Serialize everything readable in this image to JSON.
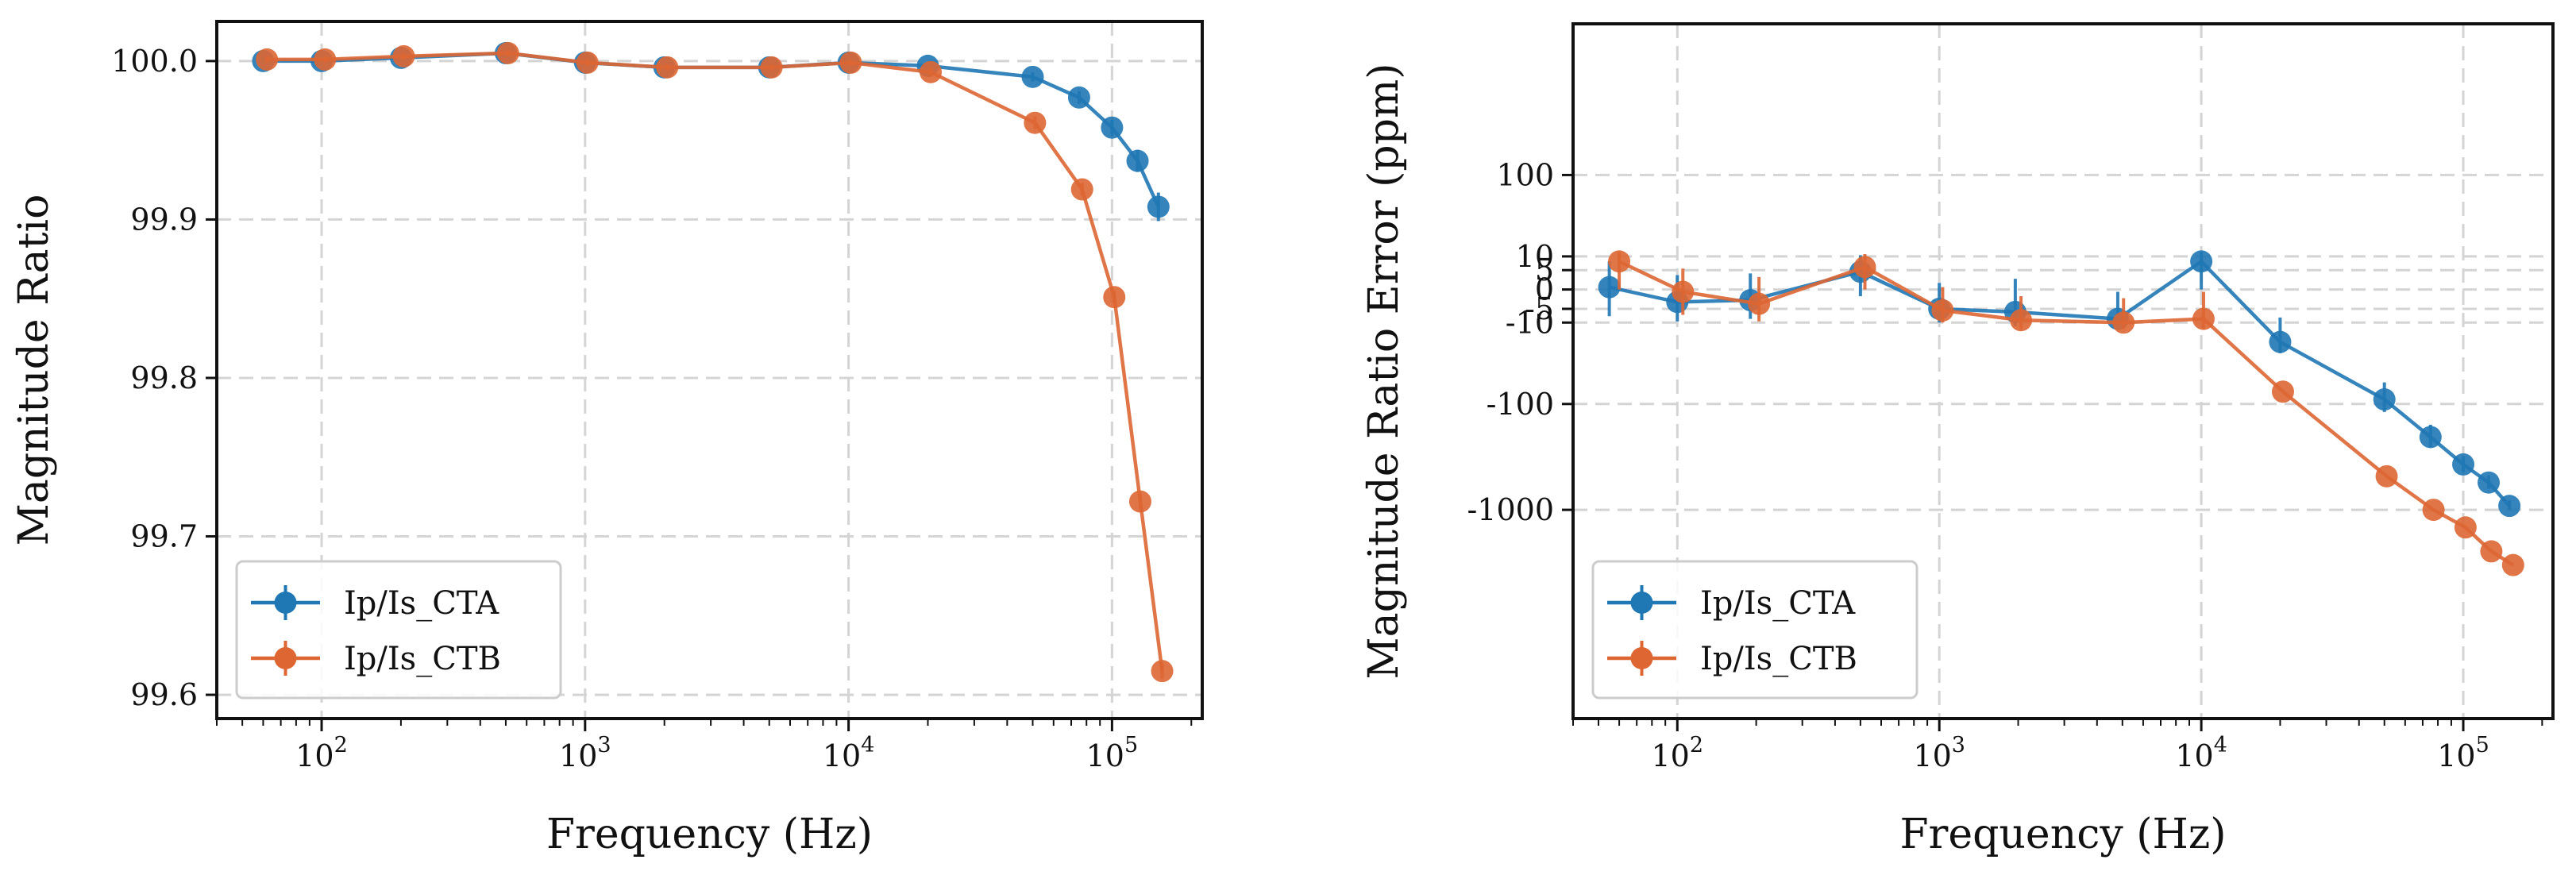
{
  "chart_data": [
    {
      "type": "line",
      "xlabel": "Frequency (Hz)",
      "ylabel": "Magnitude Ratio",
      "xscale": "log",
      "xlim": [
        40,
        220000
      ],
      "ylim": [
        99.585,
        100.025
      ],
      "yticks": [
        "99.6",
        "99.7",
        "99.8",
        "99.9",
        "100.0"
      ],
      "ytick_values": [
        99.6,
        99.7,
        99.8,
        99.9,
        100.0
      ],
      "xticks": [
        {
          "base": "10",
          "exp": "2",
          "value": 100
        },
        {
          "base": "10",
          "exp": "3",
          "value": 1000
        },
        {
          "base": "10",
          "exp": "4",
          "value": 10000
        },
        {
          "base": "10",
          "exp": "5",
          "value": 100000
        }
      ],
      "grid": true,
      "legend": "lower-left",
      "series": [
        {
          "name": "Ip/Is_CTA",
          "color": "#1f77b4",
          "x": [
            60,
            100,
            200,
            500,
            1000,
            2000,
            5000,
            10000,
            20000,
            50000,
            75000,
            100000,
            125000,
            150000
          ],
          "y": [
            100.0,
            100.0,
            100.002,
            100.005,
            99.999,
            99.996,
            99.996,
            99.999,
            99.997,
            99.99,
            99.977,
            99.958,
            99.937,
            99.908
          ],
          "err": [
            0.002,
            0.002,
            0.002,
            0.002,
            0.002,
            0.002,
            0.002,
            0.002,
            0.002,
            0.003,
            0.004,
            0.005,
            0.007,
            0.009
          ]
        },
        {
          "name": "Ip/Is_CTB",
          "color": "#dd6633",
          "x": [
            62,
            103,
            205,
            510,
            1020,
            2050,
            5100,
            10200,
            20500,
            51000,
            77000,
            102000,
            128000,
            155000
          ],
          "y": [
            100.001,
            100.001,
            100.003,
            100.005,
            99.999,
            99.996,
            99.996,
            99.999,
            99.993,
            99.961,
            99.919,
            99.851,
            99.722,
            99.615
          ],
          "err": [
            0.002,
            0.002,
            0.002,
            0.002,
            0.002,
            0.002,
            0.002,
            0.002,
            0.003,
            0.004,
            0.004,
            0.004,
            0.005,
            0.005
          ]
        }
      ]
    },
    {
      "type": "line",
      "xlabel": "Frequency (Hz)",
      "ylabel": "Magnitude Ratio Error (ppm)",
      "xscale": "log",
      "yscale": "symlog",
      "symlog_linthresh": 10,
      "xlim": [
        40,
        220000
      ],
      "ylim": [
        -80000,
        2600
      ],
      "yticks": [
        "100",
        "10",
        "5",
        "0",
        "-5",
        "-10",
        "-100",
        "-1000"
      ],
      "ytick_values": [
        100,
        10,
        5,
        0,
        -5,
        -10,
        -100,
        -1000
      ],
      "xticks": [
        {
          "base": "10",
          "exp": "2",
          "value": 100
        },
        {
          "base": "10",
          "exp": "3",
          "value": 1000
        },
        {
          "base": "10",
          "exp": "4",
          "value": 10000
        },
        {
          "base": "10",
          "exp": "5",
          "value": 100000
        }
      ],
      "grid": true,
      "legend": "lower-left",
      "series": [
        {
          "name": "Ip/Is_CTA",
          "color": "#1f77b4",
          "x": [
            55,
            100,
            190,
            500,
            1000,
            1950,
            4800,
            10000,
            20000,
            50000,
            75000,
            100000,
            125000,
            150000
          ],
          "y": [
            0.5,
            -3,
            -2.5,
            4.5,
            -5,
            -6,
            -8.5,
            8,
            -20,
            -90,
            -210,
            -380,
            -560,
            -920
          ],
          "ylow": [
            -7.5,
            -9.5,
            -8.5,
            -1.5,
            -10,
            -11.5,
            -12,
            0,
            -28,
            -120,
            -260,
            -450,
            -640,
            -1000
          ],
          "yhigh": [
            8,
            3.5,
            4,
            10.5,
            1.5,
            2.5,
            -0.5,
            12,
            -8,
            -60,
            -160,
            -320,
            -480,
            -820
          ]
        },
        {
          "name": "Ip/Is_CTB",
          "color": "#dd6633",
          "x": [
            60,
            105,
            205,
            520,
            1030,
            2050,
            5050,
            10200,
            20500,
            51000,
            77000,
            102000,
            128000,
            155000
          ],
          "y": [
            8,
            -0.5,
            -3.5,
            6,
            -5.5,
            -9,
            -10,
            -8.5,
            -75,
            -490,
            -1000,
            -1450,
            -2400,
            -3200
          ],
          "ylow": [
            0,
            -7,
            -9.5,
            0,
            -10,
            -13,
            -13,
            -13,
            -75,
            -490,
            -1000,
            -1450,
            -2400,
            -3200
          ],
          "yhigh": [
            12,
            5.5,
            3,
            11,
            0.5,
            -1.5,
            -2,
            -0.5,
            -75,
            -490,
            -1000,
            -1450,
            -2400,
            -3200
          ]
        }
      ]
    }
  ]
}
